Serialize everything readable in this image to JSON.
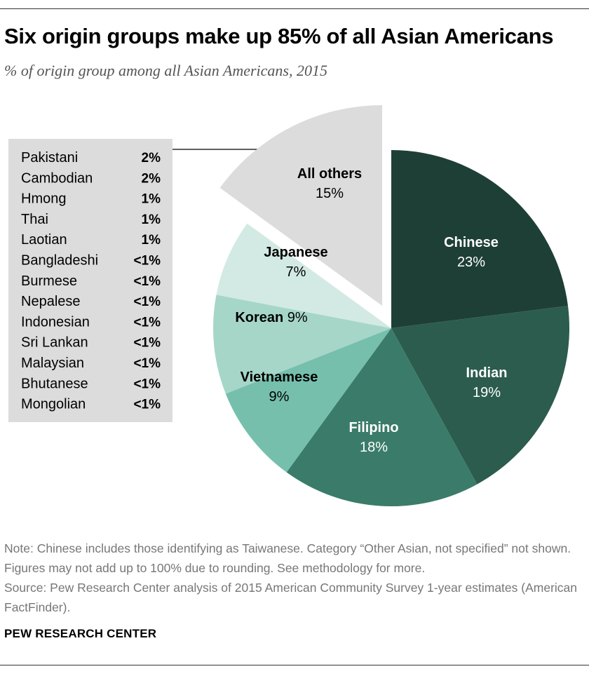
{
  "title": "Six origin groups make up 85% of all Asian Americans",
  "subtitle": "% of origin group among all Asian Americans, 2015",
  "chart_data": {
    "type": "pie",
    "slices": [
      {
        "label": "Chinese",
        "value": 23,
        "display": "23%",
        "color": "#1e3f36"
      },
      {
        "label": "Indian",
        "value": 19,
        "display": "19%",
        "color": "#2b5c4e"
      },
      {
        "label": "Filipino",
        "value": 18,
        "display": "18%",
        "color": "#3a7c69"
      },
      {
        "label": "Vietnamese",
        "value": 9,
        "display": "9%",
        "color": "#76bfac"
      },
      {
        "label": "Korean",
        "value": 9,
        "display": "9%",
        "color": "#a6d6c8"
      },
      {
        "label": "Japanese",
        "value": 7,
        "display": "7%",
        "color": "#d2eae3"
      },
      {
        "label": "All others",
        "value": 15,
        "display": "15%",
        "color": "#dcdcdc",
        "exploded": true
      }
    ],
    "all_others_breakdown": [
      {
        "label": "Pakistani",
        "value": "2%"
      },
      {
        "label": "Cambodian",
        "value": "2%"
      },
      {
        "label": "Hmong",
        "value": "1%"
      },
      {
        "label": "Thai",
        "value": "1%"
      },
      {
        "label": "Laotian",
        "value": "1%"
      },
      {
        "label": "Bangladeshi",
        "value": "<1%"
      },
      {
        "label": "Burmese",
        "value": "<1%"
      },
      {
        "label": "Nepalese",
        "value": "<1%"
      },
      {
        "label": "Indonesian",
        "value": "<1%"
      },
      {
        "label": "Sri Lankan",
        "value": "<1%"
      },
      {
        "label": "Malaysian",
        "value": "<1%"
      },
      {
        "label": "Bhutanese",
        "value": "<1%"
      },
      {
        "label": "Mongolian",
        "value": "<1%"
      }
    ]
  },
  "note": "Note: Chinese includes those identifying as Taiwanese. Category “Other Asian, not specified” not shown. Figures may not add up to 100% due to rounding. See methodology for more.",
  "source": "Source: Pew Research Center analysis of 2015 American Community Survey 1-year estimates (American FactFinder).",
  "credit": "PEW RESEARCH CENTER"
}
